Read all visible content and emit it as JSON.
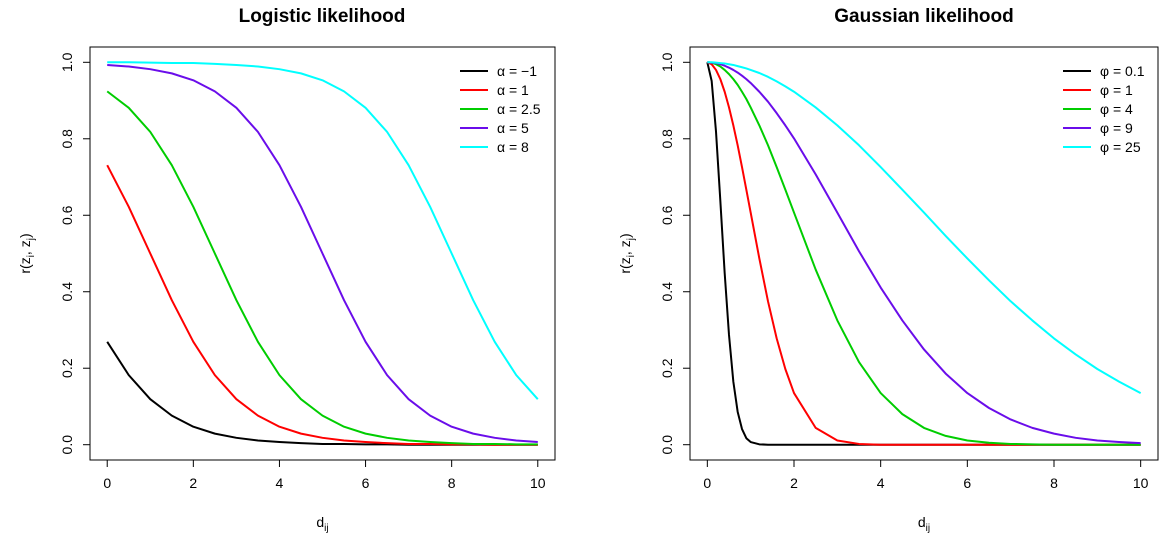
{
  "chart_data": [
    {
      "type": "line",
      "title": "Logistic likelihood",
      "xlabel": "d",
      "xlabel_sub": "ij",
      "ylabel": "r(z",
      "ylabel_sub_i": "i",
      "ylabel_sub_j": "j",
      "xlim": [
        0,
        10
      ],
      "ylim": [
        0,
        1
      ],
      "xticks": [
        "0",
        "2",
        "4",
        "6",
        "8",
        "10"
      ],
      "yticks": [
        "0.0",
        "0.2",
        "0.4",
        "0.6",
        "0.8",
        "1.0"
      ],
      "grid": false,
      "legend_position": "top-right",
      "x": [
        0,
        0.5,
        1,
        1.5,
        2,
        2.5,
        3,
        3.5,
        4,
        4.5,
        5,
        5.5,
        6,
        6.5,
        7,
        7.5,
        8,
        8.5,
        9,
        9.5,
        10
      ],
      "series": [
        {
          "name": "α = −1",
          "color": "#000000",
          "values": [
            0.269,
            0.182,
            0.119,
            0.076,
            0.047,
            0.029,
            0.018,
            0.011,
            0.007,
            0.004,
            0.002,
            0.002,
            0.001,
            0.001,
            0.0,
            0.0,
            0.0,
            0.0,
            0.0,
            0.0,
            0.0
          ]
        },
        {
          "name": "α = 1",
          "color": "#ff0000",
          "values": [
            0.731,
            0.622,
            0.5,
            0.378,
            0.269,
            0.182,
            0.119,
            0.076,
            0.047,
            0.029,
            0.018,
            0.011,
            0.007,
            0.004,
            0.002,
            0.002,
            0.001,
            0.001,
            0.0,
            0.0,
            0.0
          ]
        },
        {
          "name": "α = 2.5",
          "color": "#00cd00",
          "values": [
            0.924,
            0.881,
            0.818,
            0.731,
            0.622,
            0.5,
            0.378,
            0.269,
            0.182,
            0.119,
            0.076,
            0.047,
            0.029,
            0.018,
            0.011,
            0.007,
            0.004,
            0.002,
            0.002,
            0.001,
            0.001
          ]
        },
        {
          "name": "α = 5",
          "color": "#6a0dea",
          "values": [
            0.993,
            0.989,
            0.982,
            0.971,
            0.953,
            0.924,
            0.881,
            0.818,
            0.731,
            0.622,
            0.5,
            0.378,
            0.269,
            0.182,
            0.119,
            0.076,
            0.047,
            0.029,
            0.018,
            0.011,
            0.007
          ]
        },
        {
          "name": "α = 8",
          "color": "#00ffff",
          "values": [
            1.0,
            1.0,
            0.999,
            0.998,
            0.998,
            0.996,
            0.993,
            0.989,
            0.982,
            0.971,
            0.953,
            0.924,
            0.881,
            0.818,
            0.731,
            0.622,
            0.5,
            0.378,
            0.269,
            0.182,
            0.119
          ]
        }
      ]
    },
    {
      "type": "line",
      "title": "Gaussian likelihood",
      "xlabel": "d",
      "xlabel_sub": "ij",
      "ylabel": "r(z",
      "ylabel_sub_i": "i",
      "ylabel_sub_j": "j",
      "xlim": [
        0,
        10
      ],
      "ylim": [
        0,
        1
      ],
      "xticks": [
        "0",
        "2",
        "4",
        "6",
        "8",
        "10"
      ],
      "yticks": [
        "0.0",
        "0.2",
        "0.4",
        "0.6",
        "0.8",
        "1.0"
      ],
      "grid": false,
      "legend_position": "top-right",
      "x": [
        0,
        0.1,
        0.2,
        0.3,
        0.4,
        0.5,
        0.6,
        0.7,
        0.8,
        0.9,
        1,
        1.2,
        1.4,
        1.6,
        1.8,
        2,
        2.5,
        3,
        3.5,
        4,
        4.5,
        5,
        5.5,
        6,
        6.5,
        7,
        7.5,
        8,
        8.5,
        9,
        9.5,
        10
      ],
      "series": [
        {
          "name": "φ = 0.1",
          "color": "#000000",
          "values": [
            1.0,
            0.951,
            0.819,
            0.638,
            0.449,
            0.287,
            0.165,
            0.086,
            0.041,
            0.017,
            0.007,
            0.001,
            0.0,
            0.0,
            0.0,
            0.0,
            0.0,
            0.0,
            0.0,
            0.0,
            0.0,
            0.0,
            0.0,
            0.0,
            0.0,
            0.0,
            0.0,
            0.0,
            0.0,
            0.0,
            0.0,
            0.0
          ]
        },
        {
          "name": "φ = 1",
          "color": "#ff0000",
          "values": [
            1.0,
            0.995,
            0.98,
            0.956,
            0.923,
            0.882,
            0.835,
            0.783,
            0.726,
            0.667,
            0.607,
            0.487,
            0.375,
            0.278,
            0.198,
            0.135,
            0.044,
            0.011,
            0.002,
            0.0,
            0.0,
            0.0,
            0.0,
            0.0,
            0.0,
            0.0,
            0.0,
            0.0,
            0.0,
            0.0,
            0.0,
            0.0
          ]
        },
        {
          "name": "φ = 4",
          "color": "#00cd00",
          "values": [
            1.0,
            0.999,
            0.995,
            0.989,
            0.98,
            0.969,
            0.956,
            0.941,
            0.923,
            0.904,
            0.882,
            0.835,
            0.783,
            0.726,
            0.667,
            0.607,
            0.458,
            0.325,
            0.216,
            0.135,
            0.08,
            0.044,
            0.023,
            0.011,
            0.005,
            0.002,
            0.001,
            0.0,
            0.0,
            0.0,
            0.0,
            0.0
          ]
        },
        {
          "name": "φ = 9",
          "color": "#6a0dea",
          "values": [
            1.0,
            0.999,
            0.998,
            0.995,
            0.991,
            0.986,
            0.98,
            0.973,
            0.965,
            0.956,
            0.946,
            0.923,
            0.897,
            0.867,
            0.835,
            0.801,
            0.707,
            0.607,
            0.506,
            0.411,
            0.325,
            0.249,
            0.186,
            0.135,
            0.096,
            0.066,
            0.044,
            0.029,
            0.018,
            0.011,
            0.007,
            0.004
          ]
        },
        {
          "name": "φ = 25",
          "color": "#00ffff",
          "values": [
            1.0,
            1.0,
            0.999,
            0.998,
            0.997,
            0.995,
            0.993,
            0.99,
            0.987,
            0.984,
            0.98,
            0.972,
            0.962,
            0.95,
            0.937,
            0.923,
            0.882,
            0.835,
            0.783,
            0.726,
            0.667,
            0.607,
            0.546,
            0.487,
            0.43,
            0.375,
            0.325,
            0.278,
            0.236,
            0.198,
            0.165,
            0.135
          ]
        }
      ]
    }
  ]
}
